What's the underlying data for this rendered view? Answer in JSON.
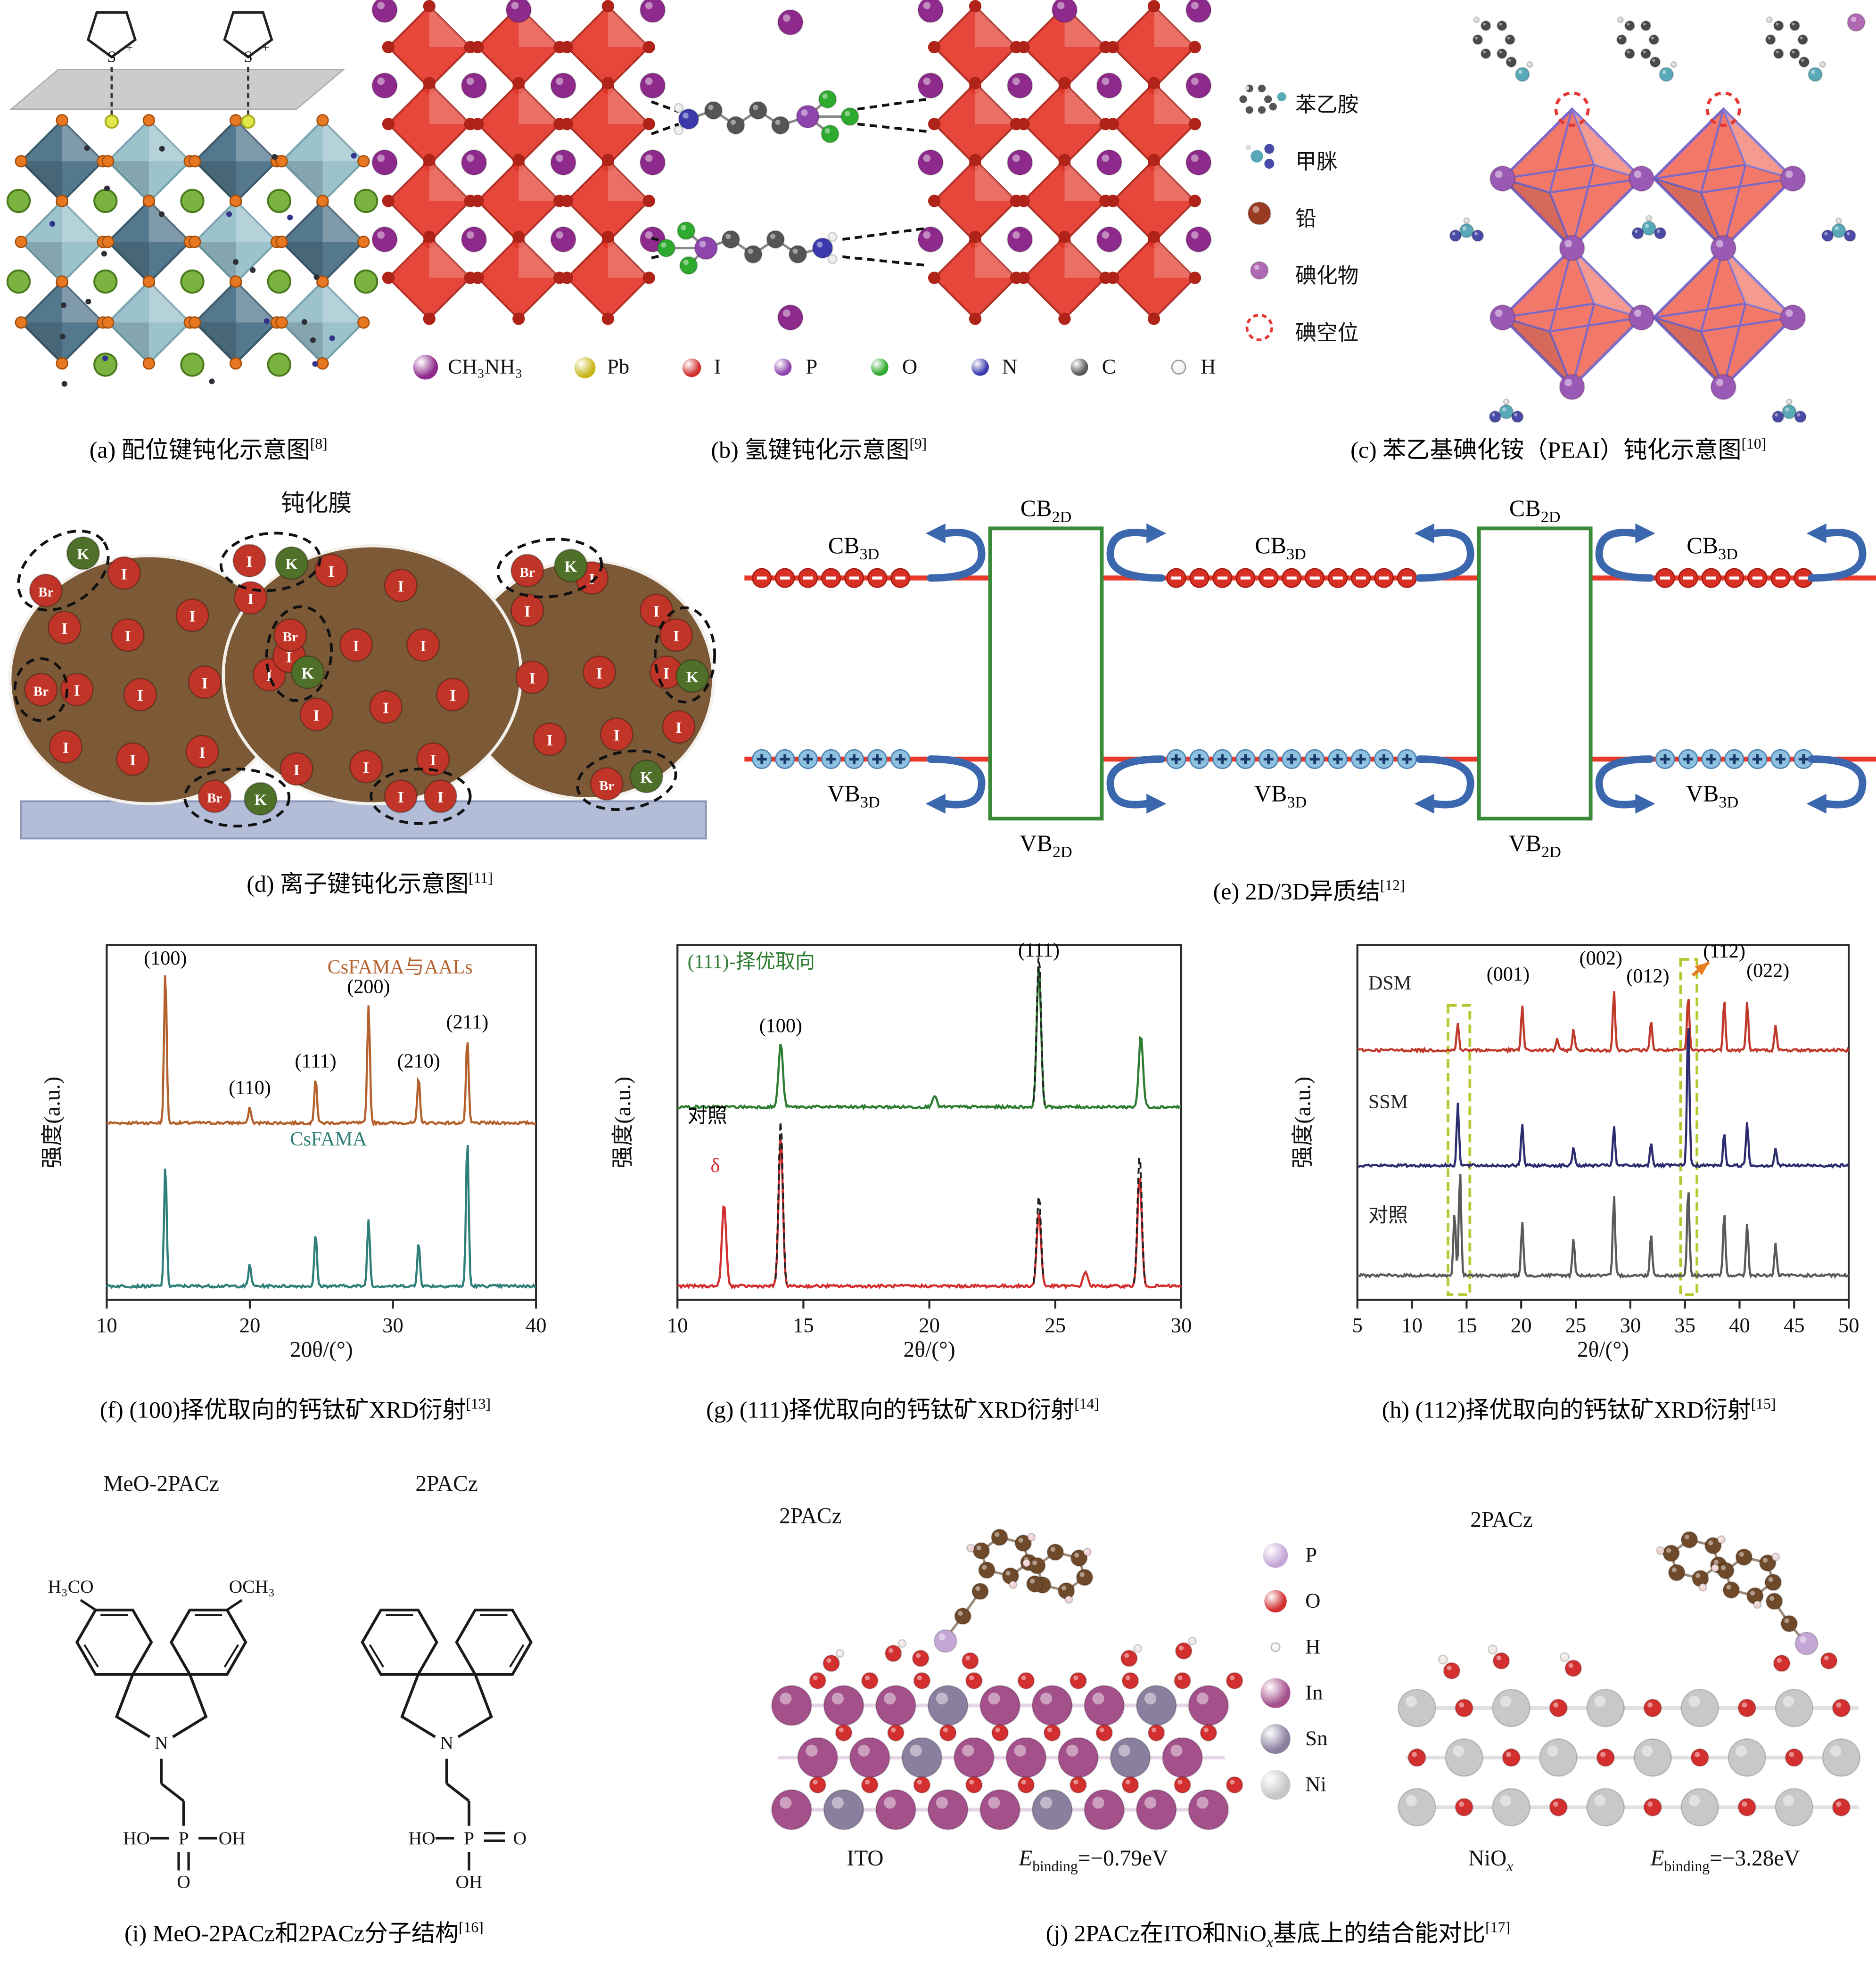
{
  "figure": {
    "panels": {
      "a": {
        "caption": "(a) 配位键钝化示意图",
        "ref": "[8]",
        "s_label": "S"
      },
      "b": {
        "caption": "(b) 氢键钝化示意图",
        "ref": "[9]",
        "legend": [
          {
            "name": "CH₃NH₃",
            "color": "#8e2a8b"
          },
          {
            "name": "Pb",
            "color": "#c9b619"
          },
          {
            "name": "I",
            "color": "#d32f2f"
          },
          {
            "name": "P",
            "color": "#8e44ad"
          },
          {
            "name": "O",
            "color": "#2eaa2e"
          },
          {
            "name": "N",
            "color": "#3a3aad"
          },
          {
            "name": "C",
            "color": "#5a5a5a"
          },
          {
            "name": "H",
            "color": "#f2f2f2"
          }
        ]
      },
      "c": {
        "caption": "(c) 苯乙基碘化铵（PEAI）钝化示意图",
        "ref": "[10]",
        "legend": [
          {
            "name": "苯乙胺",
            "icon": "phenethylamine",
            "color": "#58a8b8"
          },
          {
            "name": "甲脒",
            "icon": "formamidinium",
            "color": "#58a8b8"
          },
          {
            "name": "铅",
            "icon": "lead-ball",
            "color": "#993a22"
          },
          {
            "name": "碘化物",
            "icon": "iodide-ball",
            "color": "#b06ab3"
          },
          {
            "name": "碘空位",
            "icon": "iodine-vacancy",
            "color": "#e53935"
          }
        ]
      },
      "d": {
        "caption": "(d) 离子键钝化示意图",
        "ref": "[11]",
        "film_label": "钝化膜",
        "ion_labels": {
          "i": "I",
          "k": "K",
          "br": "Br"
        }
      },
      "e": {
        "caption": "(e) 2D/3D异质结",
        "ref": "[12]",
        "labels": {
          "cb": "CB",
          "vb": "VB",
          "d2": "2D",
          "d3": "3D"
        },
        "electron_sign": "−",
        "hole_sign": "+"
      },
      "f": {
        "caption": "(f) (100)择优取向的钙钛矿XRD衍射",
        "ref": "[13]"
      },
      "g": {
        "caption": "(g) (111)择优取向的钙钛矿XRD衍射",
        "ref": "[14]"
      },
      "h": {
        "caption": "(h) (112)择优取向的钙钛矿XRD衍射",
        "ref": "[15]"
      },
      "i": {
        "caption": "(i) MeO-2PACz和2PACz分子结构",
        "ref": "[16]",
        "molecules": [
          {
            "title": "MeO-2PACz",
            "labels": {
              "left_top": "H₃CO",
              "right_top": "OCH₃",
              "n": "N",
              "ho": "HO",
              "p": "P",
              "oh": "OH",
              "o": "O"
            }
          },
          {
            "title": "2PACz",
            "labels": {
              "n": "N",
              "ho": "HO",
              "p": "P",
              "po": "O",
              "oh": "OH"
            }
          }
        ]
      },
      "j": {
        "caption_pre": "(j) 2PACz在ITO和NiO",
        "caption_sub": "x",
        "caption_post": "基底上的结合能对比",
        "ref": "[17]",
        "left": {
          "molecule": "2PACz",
          "substrate": "ITO",
          "e_label": "E",
          "e_sub": "binding",
          "e_value": "=−0.79eV"
        },
        "right": {
          "molecule": "2PACz",
          "substrate_pre": "NiO",
          "substrate_sub": "x",
          "e_label": "E",
          "e_sub": "binding",
          "e_value": "=−3.28eV"
        },
        "legend": [
          {
            "name": "P",
            "color": "#c4a7d7",
            "r": 10
          },
          {
            "name": "O",
            "color": "#d32f2f",
            "r": 9
          },
          {
            "name": "H",
            "color": "#f7efef",
            "r": 4
          },
          {
            "name": "In",
            "color": "#a4508b",
            "r": 12
          },
          {
            "name": "Sn",
            "color": "#8a7f9e",
            "r": 12
          },
          {
            "name": "Ni",
            "color": "#c6c6c6",
            "r": 12
          }
        ]
      }
    }
  },
  "chart_data": [
    {
      "id": "f",
      "type": "line",
      "title": "",
      "xlabel": "20θ/(°)",
      "ylabel": "强度(a.u.)",
      "xlim": [
        10,
        40
      ],
      "xticks": [
        "10",
        "20",
        "30",
        "40"
      ],
      "peak_width": 0.13,
      "series": [
        {
          "name": "CsFAMA与AALs",
          "color": "#b4622d",
          "baseline": 0.505,
          "amp": 0.43,
          "peaks": [
            [
              14.1,
              1.0
            ],
            [
              20.0,
              0.1
            ],
            [
              24.6,
              0.3
            ],
            [
              28.3,
              0.78
            ],
            [
              31.8,
              0.3
            ],
            [
              35.2,
              0.55
            ]
          ]
        },
        {
          "name": "CsFAMA",
          "color": "#2e7f7a",
          "baseline": 0.965,
          "amp": 0.42,
          "peaks": [
            [
              14.1,
              0.82
            ],
            [
              20.0,
              0.15
            ],
            [
              24.6,
              0.35
            ],
            [
              28.3,
              0.45
            ],
            [
              31.8,
              0.3
            ],
            [
              35.2,
              1.0
            ]
          ]
        }
      ],
      "annotations": [
        {
          "text": "(100)",
          "x": 14.1,
          "yf": 0.055
        },
        {
          "text": "(110)",
          "x": 20.0,
          "yf": 0.42
        },
        {
          "text": "(111)",
          "x": 24.6,
          "yf": 0.345
        },
        {
          "text": "(200)",
          "x": 28.3,
          "yf": 0.135
        },
        {
          "text": "(210)",
          "x": 31.8,
          "yf": 0.345
        },
        {
          "text": "(211)",
          "x": 35.2,
          "yf": 0.235
        },
        {
          "text": "CsFAMA与AALs",
          "x": 30.5,
          "yf": 0.08,
          "color": "#b4622d"
        },
        {
          "text": "CsFAMA",
          "x": 25.5,
          "yf": 0.565,
          "color": "#2e7f7a"
        }
      ]
    },
    {
      "id": "g",
      "type": "line",
      "title": "",
      "xlabel": "2θ/(°)",
      "ylabel": "强度(a.u.)",
      "xlim": [
        10,
        30
      ],
      "xticks": [
        "10",
        "15",
        "20",
        "25",
        "30"
      ],
      "peak_width": 0.12,
      "series": [
        {
          "name": "(111)-择优取向",
          "color": "#2e7d32",
          "baseline": 0.46,
          "amp": 0.4,
          "peaks": [
            [
              14.1,
              0.45
            ],
            [
              20.2,
              0.08
            ],
            [
              24.35,
              1.0
            ],
            [
              28.4,
              0.5
            ]
          ]
        },
        {
          "name": "green-reference-dashed",
          "color": "#222222",
          "dash": true,
          "baseline": 0.46,
          "amp": 0.4,
          "peaks": [
            [
              24.35,
              1.08
            ]
          ]
        },
        {
          "name": "对照",
          "color": "#d32f2f",
          "baseline": 0.965,
          "amp": 0.42,
          "peaks": [
            [
              11.85,
              0.55
            ],
            [
              14.1,
              1.0
            ],
            [
              24.35,
              0.5
            ],
            [
              26.2,
              0.1
            ],
            [
              28.35,
              0.75
            ]
          ]
        },
        {
          "name": "control-reference-dashed",
          "color": "#222222",
          "dash": true,
          "baseline": 0.965,
          "amp": 0.42,
          "peaks": [
            [
              14.1,
              1.12
            ],
            [
              24.35,
              0.62
            ],
            [
              28.35,
              0.9
            ]
          ]
        }
      ],
      "annotations": [
        {
          "text": "(111)-择优取向",
          "x": 10.4,
          "yf": 0.065,
          "color": "#2e7d32",
          "anchor": "start"
        },
        {
          "text": "(111)",
          "x": 24.35,
          "yf": 0.032
        },
        {
          "text": "(100)",
          "x": 14.1,
          "yf": 0.245
        },
        {
          "text": "对照",
          "x": 10.4,
          "yf": 0.5,
          "anchor": "start"
        },
        {
          "text": "δ",
          "x": 11.5,
          "yf": 0.64,
          "color": "#d32f2f"
        }
      ]
    },
    {
      "id": "h",
      "type": "line",
      "title": "",
      "xlabel": "2θ/(°)",
      "ylabel": "强度(a.u.)",
      "xlim": [
        5,
        50
      ],
      "xticks": [
        "5",
        "10",
        "15",
        "20",
        "25",
        "30",
        "35",
        "40",
        "45",
        "50"
      ],
      "peak_width": 0.15,
      "series": [
        {
          "name": "DSM",
          "color": "#c0392b",
          "baseline": 0.3,
          "amp": 0.17,
          "peaks": [
            [
              14.2,
              0.45
            ],
            [
              20.1,
              0.75
            ],
            [
              23.3,
              0.2
            ],
            [
              24.8,
              0.35
            ],
            [
              28.5,
              1.0
            ],
            [
              31.9,
              0.5
            ],
            [
              35.3,
              0.9
            ],
            [
              38.6,
              0.85
            ],
            [
              40.7,
              0.8
            ],
            [
              43.3,
              0.4
            ]
          ]
        },
        {
          "name": "SSM",
          "color": "#2c2c6e",
          "baseline": 0.625,
          "amp": 0.42,
          "peaks": [
            [
              14.2,
              0.42
            ],
            [
              20.1,
              0.28
            ],
            [
              24.8,
              0.13
            ],
            [
              28.5,
              0.26
            ],
            [
              31.9,
              0.16
            ],
            [
              35.3,
              1.0
            ],
            [
              38.6,
              0.22
            ],
            [
              40.7,
              0.3
            ],
            [
              43.3,
              0.12
            ]
          ]
        },
        {
          "name": "对照",
          "color": "#5a5a5a",
          "baseline": 0.935,
          "amp": 0.3,
          "peaks": [
            [
              13.9,
              0.6
            ],
            [
              14.4,
              1.0
            ],
            [
              20.1,
              0.5
            ],
            [
              24.8,
              0.35
            ],
            [
              28.5,
              0.75
            ],
            [
              31.9,
              0.4
            ],
            [
              35.3,
              0.85
            ],
            [
              38.6,
              0.6
            ],
            [
              40.7,
              0.5
            ],
            [
              43.3,
              0.3
            ]
          ]
        }
      ],
      "annotations": [
        {
          "text": "DSM",
          "x": 6.0,
          "yf": 0.125,
          "color": "#222222",
          "anchor": "start"
        },
        {
          "text": "(001)",
          "x": 18.8,
          "yf": 0.1
        },
        {
          "text": "(002)",
          "x": 27.3,
          "yf": 0.055
        },
        {
          "text": "(012)",
          "x": 31.6,
          "yf": 0.105
        },
        {
          "text": "(112)",
          "x": 38.6,
          "yf": 0.035
        },
        {
          "text": "(022)",
          "x": 42.6,
          "yf": 0.09
        },
        {
          "text": "SSM",
          "x": 6.0,
          "yf": 0.46,
          "color": "#222222",
          "anchor": "start"
        },
        {
          "text": "对照",
          "x": 6.0,
          "yf": 0.78,
          "color": "#222222",
          "anchor": "start"
        }
      ],
      "boxes": [
        {
          "x0": 13.3,
          "x1": 15.3,
          "y0": 0.17,
          "y1": 0.985,
          "color": "#b8c832"
        },
        {
          "x0": 34.6,
          "x1": 36.1,
          "y0": 0.04,
          "y1": 0.985,
          "color": "#b8c832"
        }
      ],
      "arrow": {
        "x0": 35.7,
        "y0": 0.085,
        "x1": 37.2,
        "y1": 0.048,
        "color": "#e67e22"
      }
    }
  ]
}
